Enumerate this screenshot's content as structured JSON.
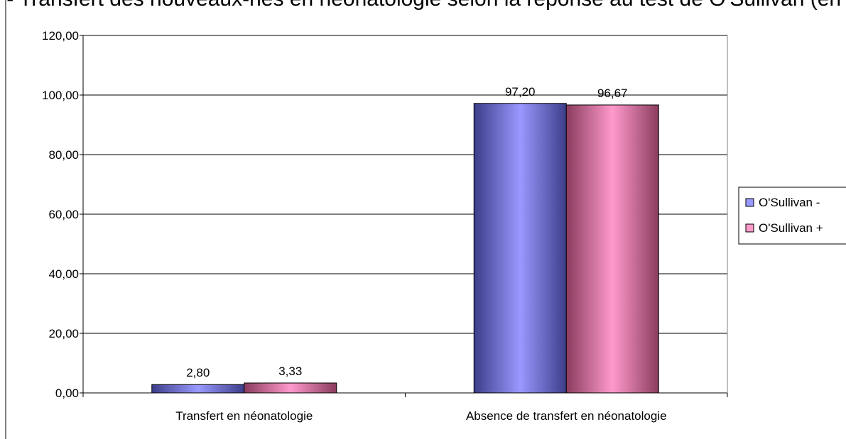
{
  "chart_data": {
    "type": "bar",
    "title": "… - Transfert des nouveaux-nés en néonatologie selon la réponse au test de O'Sullivan (en %)",
    "categories": [
      "Transfert en néonatologie",
      "Absence de transfert en néonatologie"
    ],
    "series": [
      {
        "name": "O'Sullivan -",
        "values": [
          2.8,
          97.2
        ],
        "labels": [
          "2,80",
          "97,20"
        ],
        "color": "#9999ff"
      },
      {
        "name": "O'Sullivan +",
        "values": [
          3.33,
          96.67
        ],
        "labels": [
          "3,33",
          "96,67"
        ],
        "color": "#ff99cc"
      }
    ],
    "ylim": [
      0,
      120
    ],
    "yticks": [
      0,
      20,
      40,
      60,
      80,
      100,
      120
    ],
    "ytick_labels": [
      "0,00",
      "20,00",
      "40,00",
      "60,00",
      "80,00",
      "100,00",
      "120,00"
    ],
    "grid": true,
    "legend_position": "right",
    "xlabel": "",
    "ylabel": ""
  }
}
